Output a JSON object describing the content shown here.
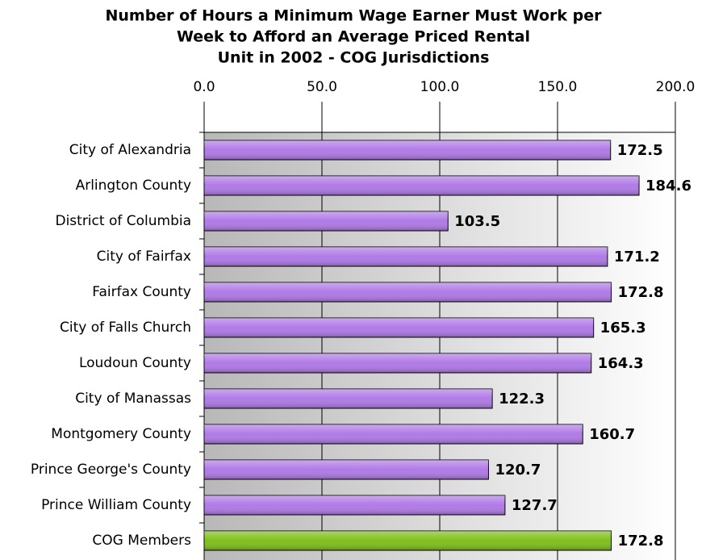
{
  "chart_data": {
    "type": "barh",
    "title": [
      "Number of Hours a Minimum Wage Earner Must Work per",
      "Week to Afford an Average Priced Rental",
      "Unit in 2002 - COG Jurisdictions"
    ],
    "categories": [
      "City of Alexandria",
      "Arlington County",
      "District of Columbia",
      "City of Fairfax",
      "Fairfax County",
      "City of Falls Church",
      "Loudoun County",
      "City of Manassas",
      "Montgomery County",
      "Prince George's County",
      "Prince William County",
      "COG Members"
    ],
    "values": [
      172.5,
      184.6,
      103.5,
      171.2,
      172.8,
      165.3,
      164.3,
      122.3,
      160.7,
      120.7,
      127.7,
      172.8
    ],
    "colors": [
      "#b07ae6",
      "#b07ae6",
      "#b07ae6",
      "#b07ae6",
      "#b07ae6",
      "#b07ae6",
      "#b07ae6",
      "#b07ae6",
      "#b07ae6",
      "#b07ae6",
      "#b07ae6",
      "#7fbf1a"
    ],
    "xlim": [
      0,
      200
    ],
    "xticks": [
      {
        "value": 0,
        "label": "0.0"
      },
      {
        "value": 50,
        "label": "50.0"
      },
      {
        "value": 100,
        "label": "100.0"
      },
      {
        "value": 150,
        "label": "150.0"
      },
      {
        "value": 200,
        "label": "200.0"
      }
    ],
    "grid": true
  }
}
